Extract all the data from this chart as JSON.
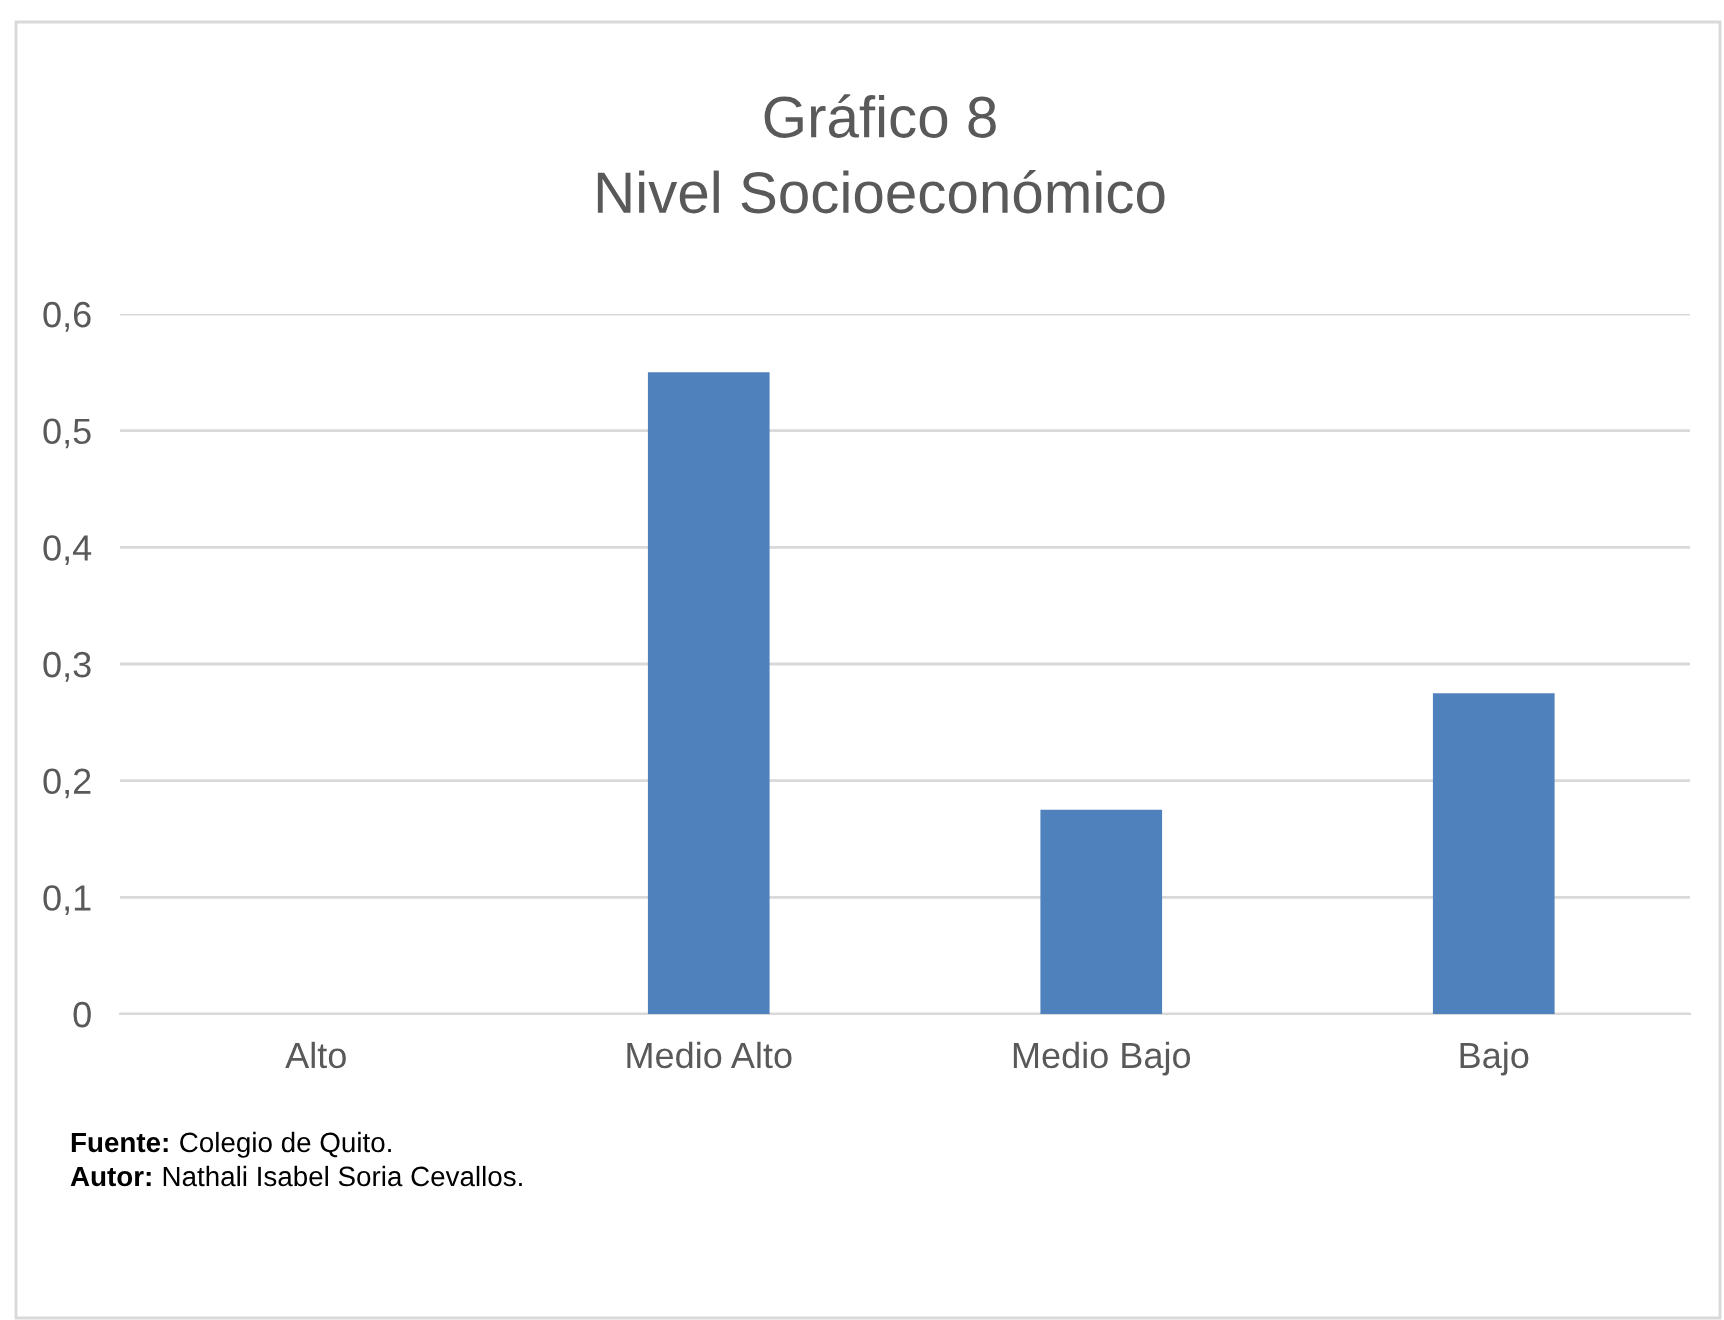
{
  "chart_data": {
    "type": "bar",
    "title": "Gráfico 8\nNivel Socioeconómico",
    "categories": [
      "Alto",
      "Medio Alto",
      "Medio Bajo",
      "Bajo"
    ],
    "values": [
      0,
      0.55,
      0.175,
      0.275
    ],
    "color": "#4f81bd",
    "ylim": [
      0,
      0.6
    ],
    "yticks": [
      0,
      {
        "value": 0.1,
        "label": "0,1"
      },
      {
        "value": 0.2,
        "label": "0,2"
      },
      {
        "value": 0.3,
        "label": "0,3"
      },
      {
        "value": 0.4,
        "label": "0,4"
      },
      {
        "value": 0.5,
        "label": "0,5"
      },
      {
        "value": 0.6,
        "label": "0,6"
      }
    ],
    "grid": "y",
    "legend": false,
    "annotations": [
      "Fuente: Colegio de Quito.",
      "Autor: Nathali Isabel Soria Cevallos."
    ]
  }
}
